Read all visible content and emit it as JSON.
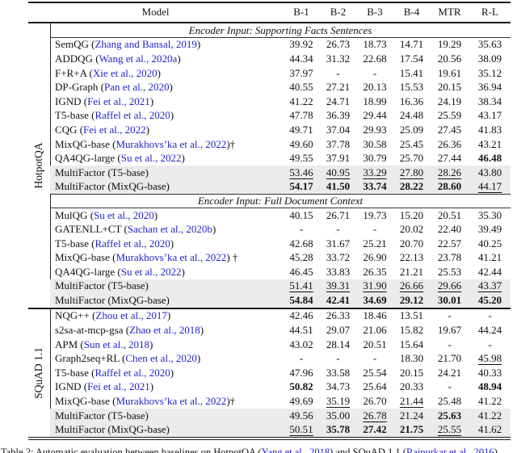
{
  "colors": {
    "citation_blue": "#2222cc",
    "highlight_gray": "#ebebeb"
  },
  "table": {
    "columns": [
      "Model",
      "B-1",
      "B-2",
      "B-3",
      "B-4",
      "MTR",
      "R-L"
    ],
    "groups": [
      {
        "label": "HotpotQA",
        "sections": [
          {
            "header": "Encoder Input: Supporting Facts Sentences",
            "rows": [
              {
                "model": "SemQG (",
                "cite": "Zhang and Bansal, 2019",
                "suffix": ")",
                "values": [
                  "39.92",
                  "26.73",
                  "18.73",
                  "14.71",
                  "19.29",
                  "35.63"
                ],
                "styles": [
                  "",
                  "",
                  "",
                  "",
                  "",
                  ""
                ],
                "highlight": false
              },
              {
                "model": "ADDQG (",
                "cite": "Wang et al., 2020a",
                "suffix": ")",
                "values": [
                  "44.34",
                  "31.32",
                  "22.68",
                  "17.54",
                  "20.56",
                  "38.09"
                ],
                "styles": [
                  "",
                  "",
                  "",
                  "",
                  "",
                  ""
                ],
                "highlight": false
              },
              {
                "model": "F+R+A (",
                "cite": "Xie et al., 2020",
                "suffix": ")",
                "values": [
                  "37.97",
                  "-",
                  "-",
                  "15.41",
                  "19.61",
                  "35.12"
                ],
                "styles": [
                  "",
                  "",
                  "",
                  "",
                  "",
                  ""
                ],
                "highlight": false
              },
              {
                "model": "DP-Graph (",
                "cite": "Pan et al., 2020",
                "suffix": ")",
                "values": [
                  "40.55",
                  "27.21",
                  "20.13",
                  "15.53",
                  "20.15",
                  "36.94"
                ],
                "styles": [
                  "",
                  "",
                  "",
                  "",
                  "",
                  ""
                ],
                "highlight": false
              },
              {
                "model": "IGND (",
                "cite": "Fei et al., 2021",
                "suffix": ")",
                "values": [
                  "41.22",
                  "24.71",
                  "18.99",
                  "16.36",
                  "24.19",
                  "38.34"
                ],
                "styles": [
                  "",
                  "",
                  "",
                  "",
                  "",
                  ""
                ],
                "highlight": false
              },
              {
                "model": "T5-base (",
                "cite": "Raffel et al., 2020",
                "suffix": ")",
                "values": [
                  "47.78",
                  "36.39",
                  "29.44",
                  "24.48",
                  "25.59",
                  "43.17"
                ],
                "styles": [
                  "",
                  "",
                  "",
                  "",
                  "",
                  ""
                ],
                "highlight": false
              },
              {
                "model": "CQG (",
                "cite": "Fei et al., 2022",
                "suffix": ")",
                "values": [
                  "49.71",
                  "37.04",
                  "29.93",
                  "25.09",
                  "27.45",
                  "41.83"
                ],
                "styles": [
                  "",
                  "",
                  "",
                  "",
                  "",
                  ""
                ],
                "highlight": false
              },
              {
                "model": "MixQG-base (",
                "cite": "Murakhovs’ka et al., 2022",
                "suffix": ")†",
                "values": [
                  "49.60",
                  "37.78",
                  "30.58",
                  "25.45",
                  "26.36",
                  "43.21"
                ],
                "styles": [
                  "",
                  "",
                  "",
                  "",
                  "",
                  ""
                ],
                "highlight": false
              },
              {
                "model": "QA4QG-large (",
                "cite": "Su et al., 2022",
                "suffix": ")",
                "values": [
                  "49.55",
                  "37.91",
                  "30.79",
                  "25.70",
                  "27.44",
                  "46.48"
                ],
                "styles": [
                  "",
                  "",
                  "",
                  "",
                  "",
                  "b"
                ],
                "highlight": false
              },
              {
                "model": "MultiFactor (T5-base)",
                "cite": "",
                "suffix": "",
                "values": [
                  "53.46",
                  "40.95",
                  "33.29",
                  "27.80",
                  "28.26",
                  "43.80"
                ],
                "styles": [
                  "u",
                  "u",
                  "u",
                  "u",
                  "u",
                  ""
                ],
                "highlight": true
              },
              {
                "model": "MultiFactor (MixQG-base)",
                "cite": "",
                "suffix": "",
                "values": [
                  "54.17",
                  "41.50",
                  "33.74",
                  "28.22",
                  "28.60",
                  "44.17"
                ],
                "styles": [
                  "b",
                  "b",
                  "b",
                  "b",
                  "b",
                  "u"
                ],
                "highlight": true
              }
            ]
          },
          {
            "header": "Encoder Input: Full Document Context",
            "rows": [
              {
                "model": "MulQG (",
                "cite": "Su et al., 2020",
                "suffix": ")",
                "values": [
                  "40.15",
                  "26.71",
                  "19.73",
                  "15.20",
                  "20.51",
                  "35.30"
                ],
                "styles": [
                  "",
                  "",
                  "",
                  "",
                  "",
                  ""
                ],
                "highlight": false
              },
              {
                "model": "GATENLL+CT (",
                "cite": "Sachan et al., 2020b",
                "suffix": ")",
                "values": [
                  "-",
                  "-",
                  "-",
                  "20.02",
                  "22.40",
                  "39.49"
                ],
                "styles": [
                  "",
                  "",
                  "",
                  "",
                  "",
                  ""
                ],
                "highlight": false
              },
              {
                "model": "T5-base (",
                "cite": "Raffel et al., 2020",
                "suffix": ")",
                "values": [
                  "42.68",
                  "31.67",
                  "25.21",
                  "20.70",
                  "22.57",
                  "40.25"
                ],
                "styles": [
                  "",
                  "",
                  "",
                  "",
                  "",
                  ""
                ],
                "highlight": false
              },
              {
                "model": "MixQG-base (",
                "cite": "Murakhovs’ka et al., 2022",
                "suffix": ") †",
                "values": [
                  "45.28",
                  "33.72",
                  "26.90",
                  "22.13",
                  "23.78",
                  "41.21"
                ],
                "styles": [
                  "",
                  "",
                  "",
                  "",
                  "",
                  ""
                ],
                "highlight": false
              },
              {
                "model": "QA4QG-large (",
                "cite": "Su et al., 2022",
                "suffix": ")",
                "values": [
                  "46.45",
                  "33.83",
                  "26.35",
                  "21.21",
                  "25.53",
                  "42.44"
                ],
                "styles": [
                  "",
                  "",
                  "",
                  "",
                  "",
                  ""
                ],
                "highlight": false
              },
              {
                "model": "MultiFactor (T5-base)",
                "cite": "",
                "suffix": "",
                "values": [
                  "51.41",
                  "39.31",
                  "31.90",
                  "26.66",
                  "29.66",
                  "43.37"
                ],
                "styles": [
                  "u",
                  "u",
                  "u",
                  "u",
                  "u",
                  "u"
                ],
                "highlight": true
              },
              {
                "model": "MultiFactor (MixQG-base)",
                "cite": "",
                "suffix": "",
                "values": [
                  "54.84",
                  "42.41",
                  "34.69",
                  "29.12",
                  "30.01",
                  "45.20"
                ],
                "styles": [
                  "b",
                  "b",
                  "b",
                  "b",
                  "b",
                  "b"
                ],
                "highlight": true
              }
            ]
          }
        ]
      },
      {
        "label": "SQuAD 1.1",
        "sections": [
          {
            "header": "",
            "rows": [
              {
                "model": "NQG++ (",
                "cite": "Zhou et al., 2017",
                "suffix": ")",
                "values": [
                  "42.46",
                  "26.33",
                  "18.46",
                  "13.51",
                  "-",
                  "-"
                ],
                "styles": [
                  "",
                  "",
                  "",
                  "",
                  "",
                  ""
                ],
                "highlight": false
              },
              {
                "model": "s2sa-at-mcp-gsa (",
                "cite": "Zhao et al., 2018",
                "suffix": ")",
                "values": [
                  "44.51",
                  "29.07",
                  "21.06",
                  "15.82",
                  "19.67",
                  "44.24"
                ],
                "styles": [
                  "",
                  "",
                  "",
                  "",
                  "",
                  ""
                ],
                "highlight": false
              },
              {
                "model": "APM (",
                "cite": "Sun et al., 2018",
                "suffix": ")",
                "values": [
                  "43.02",
                  "28.14",
                  "20.51",
                  "15.64",
                  "-",
                  "-"
                ],
                "styles": [
                  "",
                  "",
                  "",
                  "",
                  "",
                  ""
                ],
                "highlight": false
              },
              {
                "model": "Graph2seq+RL (",
                "cite": "Chen et al., 2020",
                "suffix": ")",
                "values": [
                  "-",
                  "-",
                  "-",
                  "18.30",
                  "21.70",
                  "45.98"
                ],
                "styles": [
                  "",
                  "",
                  "",
                  "",
                  "",
                  "u"
                ],
                "highlight": false
              },
              {
                "model": "T5-base (",
                "cite": "Raffel et al., 2020",
                "suffix": ")",
                "values": [
                  "47.96",
                  "33.58",
                  "25.54",
                  "20.15",
                  "24.21",
                  "40.33"
                ],
                "styles": [
                  "",
                  "",
                  "",
                  "",
                  "",
                  ""
                ],
                "highlight": false
              },
              {
                "model": "IGND (",
                "cite": "Fei et al., 2021",
                "suffix": ")",
                "values": [
                  "50.82",
                  "34.73",
                  "25.64",
                  "20.33",
                  "-",
                  "48.94"
                ],
                "styles": [
                  "b",
                  "",
                  "",
                  "",
                  "",
                  "b"
                ],
                "highlight": false
              },
              {
                "model": "MixQG-base (",
                "cite": "Murakhovs’ka et al., 2022",
                "suffix": ")†",
                "values": [
                  "49.69",
                  "35.19",
                  "26.70",
                  "21.44",
                  "25.48",
                  "41.22"
                ],
                "styles": [
                  "",
                  "u",
                  "",
                  "u",
                  "",
                  ""
                ],
                "highlight": false
              },
              {
                "model": "MultiFactor (T5-base)",
                "cite": "",
                "suffix": "",
                "values": [
                  "49.56",
                  "35.00",
                  "26.78",
                  "21.24",
                  "25.63",
                  "41.22"
                ],
                "styles": [
                  "",
                  "",
                  "u",
                  "",
                  "b",
                  ""
                ],
                "highlight": true
              },
              {
                "model": "MultiFactor (MixQG-base)",
                "cite": "",
                "suffix": "",
                "values": [
                  "50.51",
                  "35.78",
                  "27.42",
                  "21.75",
                  "25.55",
                  "41.62"
                ],
                "styles": [
                  "u",
                  "b",
                  "b",
                  "b",
                  "u",
                  ""
                ],
                "highlight": true
              }
            ]
          }
        ]
      }
    ]
  },
  "caption": {
    "parts": [
      {
        "text": "Table 2: Automatic evaluation between baselines on HotpotQA (",
        "link": false
      },
      {
        "text": "Yang et al., 2018",
        "link": true
      },
      {
        "text": ") and SQuAD 1.1 (",
        "link": false
      },
      {
        "text": "Rajpurkar et al., 2016",
        "link": true
      },
      {
        "text": ").",
        "link": false
      }
    ]
  }
}
